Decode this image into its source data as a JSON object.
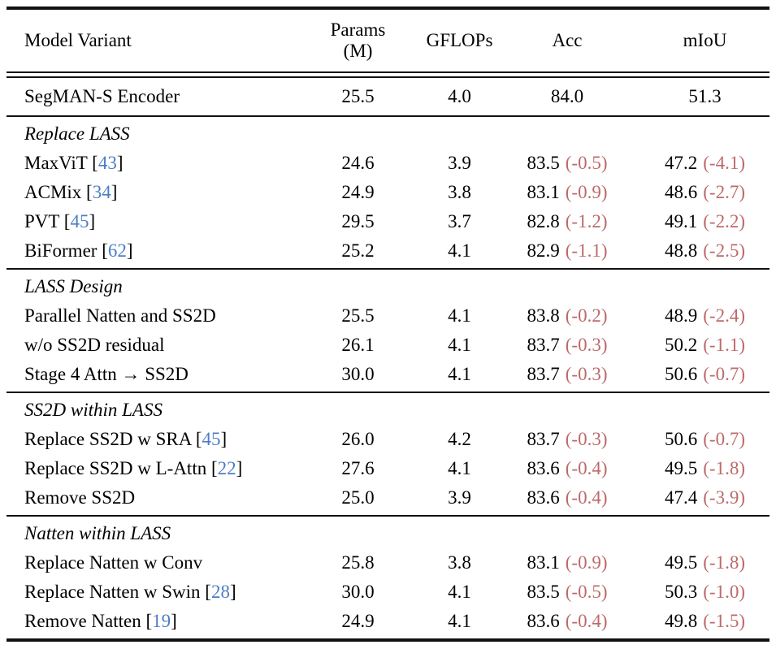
{
  "colors": {
    "citation_blue": "#4d7dc5",
    "delta_rose": "#bd6a6a",
    "rule_black": "#111111"
  },
  "table": {
    "header": {
      "model_variant": "Model Variant",
      "params_line1": "Params",
      "params_line2": "(M)",
      "gflops": "GFLOPs",
      "acc": "Acc",
      "miou": "mIoU"
    },
    "baseline": {
      "name": "SegMAN-S Encoder",
      "params": "25.5",
      "gflops": "4.0",
      "acc": "84.0",
      "miou": "51.3"
    },
    "sections": [
      {
        "title": "Replace LASS",
        "rows": [
          {
            "name_pre": "MaxViT [",
            "cite": "43",
            "name_post": "]",
            "params": "24.6",
            "gflops": "3.9",
            "acc": "83.5",
            "acc_delta": "(-0.5)",
            "miou": "47.2",
            "miou_delta": "(-4.1)"
          },
          {
            "name_pre": "ACMix [",
            "cite": "34",
            "name_post": "]",
            "params": "24.9",
            "gflops": "3.8",
            "acc": "83.1",
            "acc_delta": "(-0.9)",
            "miou": "48.6",
            "miou_delta": "(-2.7)"
          },
          {
            "name_pre": "PVT [",
            "cite": "45",
            "name_post": "]",
            "params": "29.5",
            "gflops": "3.7",
            "acc": "82.8",
            "acc_delta": "(-1.2)",
            "miou": "49.1",
            "miou_delta": "(-2.2)"
          },
          {
            "name_pre": "BiFormer [",
            "cite": "62",
            "name_post": "]",
            "params": "25.2",
            "gflops": "4.1",
            "acc": "82.9",
            "acc_delta": "(-1.1)",
            "miou": "48.8",
            "miou_delta": "(-2.5)"
          }
        ]
      },
      {
        "title": "LASS Design",
        "rows": [
          {
            "name_pre": "Parallel Natten and SS2D",
            "cite": "",
            "name_post": "",
            "params": "25.5",
            "gflops": "4.1",
            "acc": "83.8",
            "acc_delta": "(-0.2)",
            "miou": "48.9",
            "miou_delta": "(-2.4)"
          },
          {
            "name_pre": "w/o SS2D residual",
            "cite": "",
            "name_post": "",
            "params": "26.1",
            "gflops": "4.1",
            "acc": "83.7",
            "acc_delta": "(-0.3)",
            "miou": "50.2",
            "miou_delta": "(-1.1)"
          },
          {
            "name_pre": "Stage 4 Attn → SS2D",
            "cite": "",
            "name_post": "",
            "params": "30.0",
            "gflops": "4.1",
            "acc": "83.7",
            "acc_delta": "(-0.3)",
            "miou": "50.6",
            "miou_delta": "(-0.7)"
          }
        ]
      },
      {
        "title": "SS2D within LASS",
        "rows": [
          {
            "name_pre": "Replace SS2D w SRA [",
            "cite": "45",
            "name_post": "]",
            "params": "26.0",
            "gflops": "4.2",
            "acc": "83.7",
            "acc_delta": "(-0.3)",
            "miou": "50.6",
            "miou_delta": "(-0.7)"
          },
          {
            "name_pre": "Replace SS2D w L-Attn [",
            "cite": "22",
            "name_post": "]",
            "params": "27.6",
            "gflops": "4.1",
            "acc": "83.6",
            "acc_delta": "(-0.4)",
            "miou": "49.5",
            "miou_delta": "(-1.8)"
          },
          {
            "name_pre": "Remove SS2D",
            "cite": "",
            "name_post": "",
            "params": "25.0",
            "gflops": "3.9",
            "acc": "83.6",
            "acc_delta": "(-0.4)",
            "miou": "47.4",
            "miou_delta": "(-3.9)"
          }
        ]
      },
      {
        "title": "Natten within LASS",
        "rows": [
          {
            "name_pre": "Replace Natten w Conv",
            "cite": "",
            "name_post": "",
            "params": "25.8",
            "gflops": "3.8",
            "acc": "83.1",
            "acc_delta": "(-0.9)",
            "miou": "49.5",
            "miou_delta": "(-1.8)"
          },
          {
            "name_pre": "Replace Natten w Swin [",
            "cite": "28",
            "name_post": "]",
            "params": "30.0",
            "gflops": "4.1",
            "acc": "83.5",
            "acc_delta": "(-0.5)",
            "miou": "50.3",
            "miou_delta": "(-1.0)"
          },
          {
            "name_pre": "Remove Natten [",
            "cite": "19",
            "name_post": "]",
            "params": "24.9",
            "gflops": "4.1",
            "acc": "83.6",
            "acc_delta": "(-0.4)",
            "miou": "49.8",
            "miou_delta": "(-1.5)"
          }
        ]
      }
    ]
  }
}
